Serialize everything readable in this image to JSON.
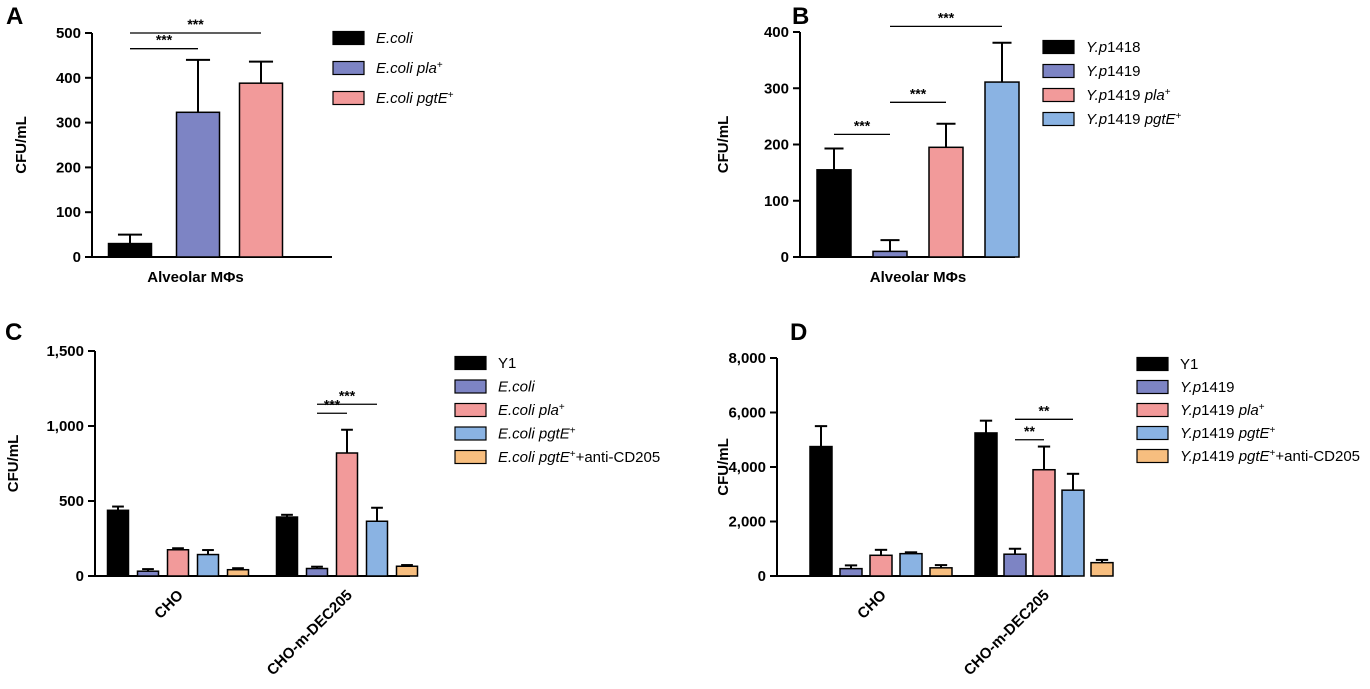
{
  "chart_data": [
    {
      "panel": "A",
      "type": "bar",
      "ylabel": "CFU/mL",
      "ylim": [
        0,
        500
      ],
      "yticks": [
        0,
        100,
        200,
        300,
        400,
        500
      ],
      "ytick_labels": [
        "0",
        "100",
        "200",
        "300",
        "400",
        "500"
      ],
      "groups": [
        "Alveolar MΦs"
      ],
      "series": [
        {
          "name": "E.coli",
          "parts": [
            {
              "t": "E.coli",
              "i": true
            }
          ],
          "color": "#000000",
          "values": [
            30
          ],
          "errors": [
            20
          ]
        },
        {
          "name": "E.coli pla+",
          "parts": [
            {
              "t": "E.coli pla",
              "i": true
            },
            {
              "t": "+",
              "sup": true
            }
          ],
          "color": "#7d84c4",
          "values": [
            323
          ],
          "errors": [
            117
          ]
        },
        {
          "name": "E.coli pgtE+",
          "parts": [
            {
              "t": "E.coli pgtE",
              "i": true
            },
            {
              "t": "+",
              "sup": true
            }
          ],
          "color": "#f29a9a",
          "values": [
            388
          ],
          "errors": [
            48
          ]
        }
      ],
      "significance": [
        {
          "group": 0,
          "from": 0,
          "to": 1,
          "y": 465,
          "label": "***"
        },
        {
          "group": 0,
          "from": 0,
          "to": 2,
          "y": 500,
          "label": "***"
        }
      ]
    },
    {
      "panel": "B",
      "type": "bar",
      "ylabel": "CFU/mL",
      "ylim": [
        0,
        400
      ],
      "yticks": [
        0,
        100,
        200,
        300,
        400
      ],
      "ytick_labels": [
        "0",
        "100",
        "200",
        "300",
        "400"
      ],
      "groups": [
        "Alveolar MΦs"
      ],
      "series": [
        {
          "name": "Y.p1418",
          "parts": [
            {
              "t": "Y.p",
              "i": true
            },
            {
              "t": "1418"
            }
          ],
          "color": "#000000",
          "values": [
            155
          ],
          "errors": [
            38
          ]
        },
        {
          "name": "Y.p1419",
          "parts": [
            {
              "t": "Y.p",
              "i": true
            },
            {
              "t": "1419"
            }
          ],
          "color": "#7d84c4",
          "values": [
            10
          ],
          "errors": [
            20
          ]
        },
        {
          "name": "Y.p1419 pla+",
          "parts": [
            {
              "t": "Y.p",
              "i": true
            },
            {
              "t": "1419 "
            },
            {
              "t": "pla",
              "i": true
            },
            {
              "t": "+",
              "sup": true
            }
          ],
          "color": "#f29a9a",
          "values": [
            195
          ],
          "errors": [
            42
          ]
        },
        {
          "name": "Y.p1419 pgtE+",
          "parts": [
            {
              "t": "Y.p",
              "i": true
            },
            {
              "t": "1419 "
            },
            {
              "t": "pgtE",
              "i": true
            },
            {
              "t": "+",
              "sup": true
            }
          ],
          "color": "#8ab3e3",
          "values": [
            311
          ],
          "errors": [
            70
          ]
        }
      ],
      "significance": [
        {
          "group": 0,
          "from": 0,
          "to": 1,
          "y": 218,
          "label": "***"
        },
        {
          "group": 0,
          "from": 1,
          "to": 2,
          "y": 275,
          "label": "***"
        },
        {
          "group": 0,
          "from": 1,
          "to": 3,
          "y": 410,
          "label": "***"
        }
      ]
    },
    {
      "panel": "C",
      "type": "bar",
      "ylabel": "CFU/mL",
      "ylim": [
        0,
        1500
      ],
      "yticks": [
        0,
        500,
        1000,
        1500
      ],
      "ytick_labels": [
        "0",
        "500",
        "1,000",
        "1,500"
      ],
      "groups": [
        "CHO",
        "CHO-m-DEC205"
      ],
      "series": [
        {
          "name": "Y1",
          "parts": [
            {
              "t": "Y1"
            }
          ],
          "color": "#000000",
          "values": [
            438,
            393
          ],
          "errors": [
            25,
            15
          ]
        },
        {
          "name": "E.coli",
          "parts": [
            {
              "t": "E.coli",
              "i": true
            }
          ],
          "color": "#7d84c4",
          "values": [
            32,
            50
          ],
          "errors": [
            14,
            12
          ]
        },
        {
          "name": "E.coli pla+",
          "parts": [
            {
              "t": "E.coli pla",
              "i": true
            },
            {
              "t": "+",
              "sup": true
            }
          ],
          "color": "#f29a9a",
          "values": [
            175,
            820
          ],
          "errors": [
            10,
            155
          ]
        },
        {
          "name": "E.coli pgtE+",
          "parts": [
            {
              "t": "E.coli pgtE",
              "i": true
            },
            {
              "t": "+",
              "sup": true
            }
          ],
          "color": "#8ab3e3",
          "values": [
            143,
            365
          ],
          "errors": [
            30,
            90
          ]
        },
        {
          "name": "E.coli pgtE+ +anti-CD205",
          "parts": [
            {
              "t": "E.coli pgtE",
              "i": true
            },
            {
              "t": "+",
              "sup": true
            },
            {
              "t": "+anti-CD205"
            }
          ],
          "color": "#f7be7f",
          "values": [
            42,
            65
          ],
          "errors": [
            10,
            8
          ]
        }
      ],
      "significance": [
        {
          "group": 1,
          "from": 1,
          "to": 2,
          "y": 1085,
          "label": "***"
        },
        {
          "group": 1,
          "from": 1,
          "to": 3,
          "y": 1145,
          "label": "***"
        }
      ]
    },
    {
      "panel": "D",
      "type": "bar",
      "ylabel": "CFU/mL",
      "ylim": [
        0,
        8000
      ],
      "yticks": [
        0,
        2000,
        4000,
        6000,
        8000
      ],
      "ytick_labels": [
        "0",
        "2,000",
        "4,000",
        "6,000",
        "8,000"
      ],
      "groups": [
        "CHO",
        "CHO-m-DEC205"
      ],
      "series": [
        {
          "name": "Y1",
          "parts": [
            {
              "t": "Y1"
            }
          ],
          "color": "#000000",
          "values": [
            4750,
            5250
          ],
          "errors": [
            750,
            450
          ]
        },
        {
          "name": "Y.p1419",
          "parts": [
            {
              "t": "Y.p",
              "i": true
            },
            {
              "t": "1419"
            }
          ],
          "color": "#7d84c4",
          "values": [
            270,
            800
          ],
          "errors": [
            120,
            200
          ]
        },
        {
          "name": "Y.p1419 pla+",
          "parts": [
            {
              "t": "Y.p",
              "i": true
            },
            {
              "t": "1419 "
            },
            {
              "t": "pla",
              "i": true
            },
            {
              "t": "+",
              "sup": true
            }
          ],
          "color": "#f29a9a",
          "values": [
            760,
            3900
          ],
          "errors": [
            200,
            850
          ]
        },
        {
          "name": "Y.p1419 pgtE+",
          "parts": [
            {
              "t": "Y.p",
              "i": true
            },
            {
              "t": "1419 "
            },
            {
              "t": "pgtE",
              "i": true
            },
            {
              "t": "+",
              "sup": true
            }
          ],
          "color": "#8ab3e3",
          "values": [
            820,
            3150
          ],
          "errors": [
            50,
            600
          ]
        },
        {
          "name": "Y.p1419 pgtE+ +anti-CD205",
          "parts": [
            {
              "t": "Y.p",
              "i": true
            },
            {
              "t": "1419 "
            },
            {
              "t": "pgtE",
              "i": true
            },
            {
              "t": "+",
              "sup": true
            },
            {
              "t": "+anti-CD205"
            }
          ],
          "color": "#f7be7f",
          "values": [
            300,
            490
          ],
          "errors": [
            100,
            100
          ]
        }
      ],
      "significance": [
        {
          "group": 1,
          "from": 1,
          "to": 2,
          "y": 5000,
          "label": "**"
        },
        {
          "group": 1,
          "from": 1,
          "to": 3,
          "y": 5750,
          "label": "**"
        }
      ]
    }
  ]
}
